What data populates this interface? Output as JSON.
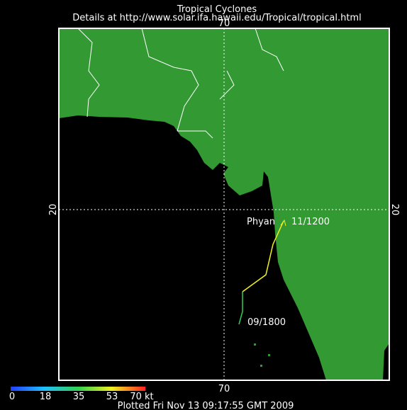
{
  "header": {
    "title": "Tropical Cyclones",
    "details": "Details at http://www.solar.ifa.hawaii.edu/Tropical/tropical.html"
  },
  "grid_labels": {
    "top": "70",
    "bottom": "70",
    "left": "20",
    "right": "20"
  },
  "storm": {
    "name": "Phyan",
    "end_label": "11/1200",
    "start_label": "09/1800"
  },
  "colorbar": {
    "labels": [
      "0",
      "18",
      "35",
      "53",
      "70 kt"
    ]
  },
  "footer": "Plotted Fri Nov 13 09:17:55 GMT 2009"
}
